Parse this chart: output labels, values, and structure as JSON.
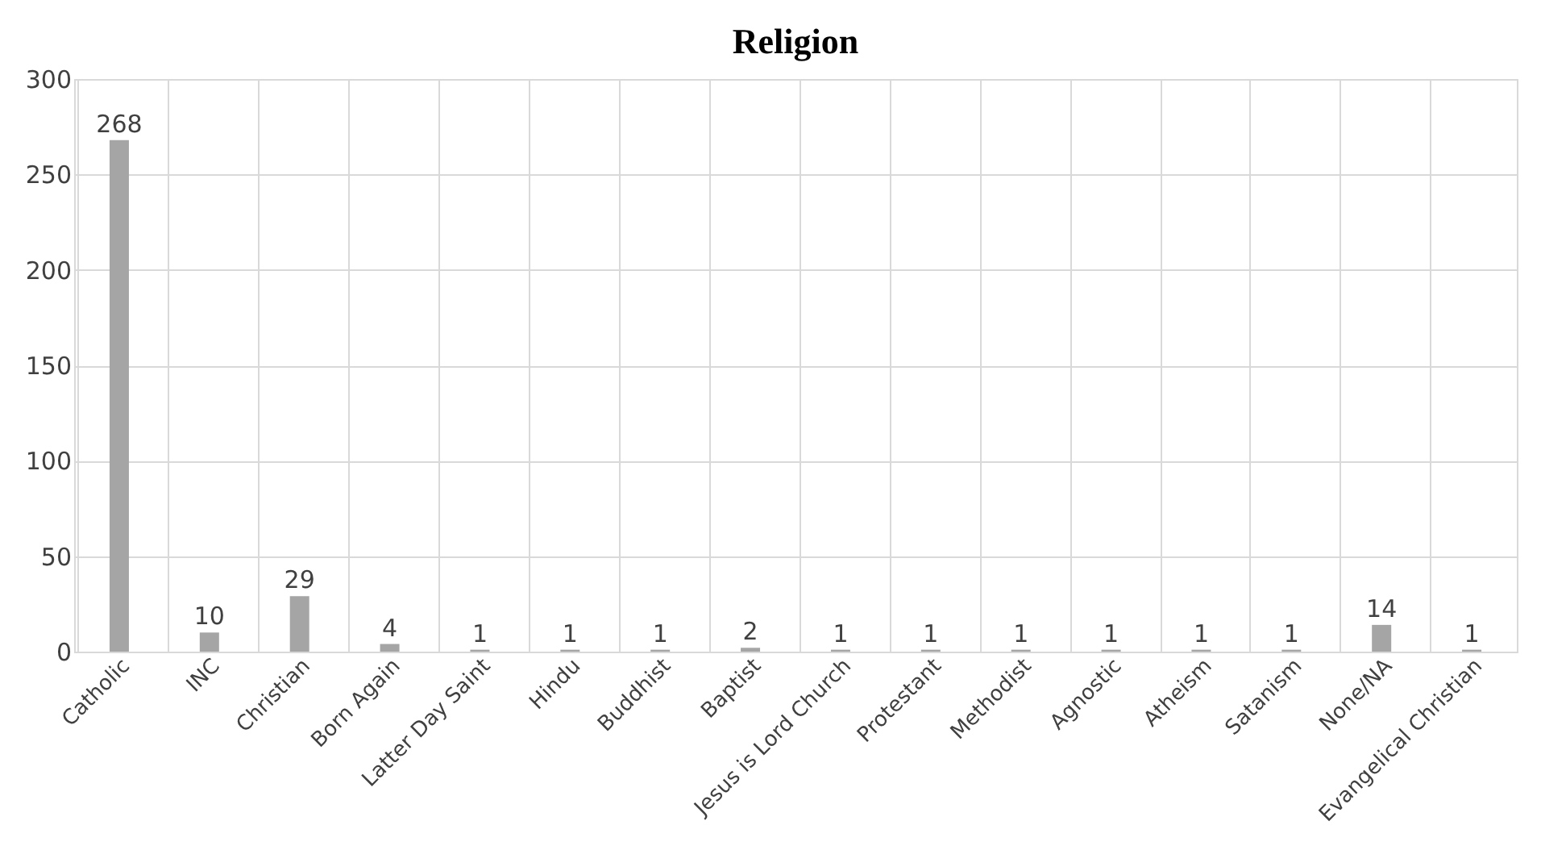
{
  "chart_data": {
    "type": "bar",
    "title": "Religion",
    "categories": [
      "Catholic",
      "INC",
      "Christian",
      "Born Again",
      "Latter Day Saint",
      "Hindu",
      "Buddhist",
      "Baptist",
      "Jesus is Lord Church",
      "Protestant",
      "Methodist",
      "Agnostic",
      "Atheism",
      "Satanism",
      "None/NA",
      "Evangelical Christian"
    ],
    "values": [
      268,
      10,
      29,
      4,
      1,
      1,
      1,
      2,
      1,
      1,
      1,
      1,
      1,
      1,
      14,
      1
    ],
    "color": "#a5a5a5",
    "ylim": [
      0,
      300
    ],
    "yticks": [
      0,
      50,
      100,
      150,
      200,
      250,
      300
    ],
    "grid": true,
    "data_labels": true
  }
}
